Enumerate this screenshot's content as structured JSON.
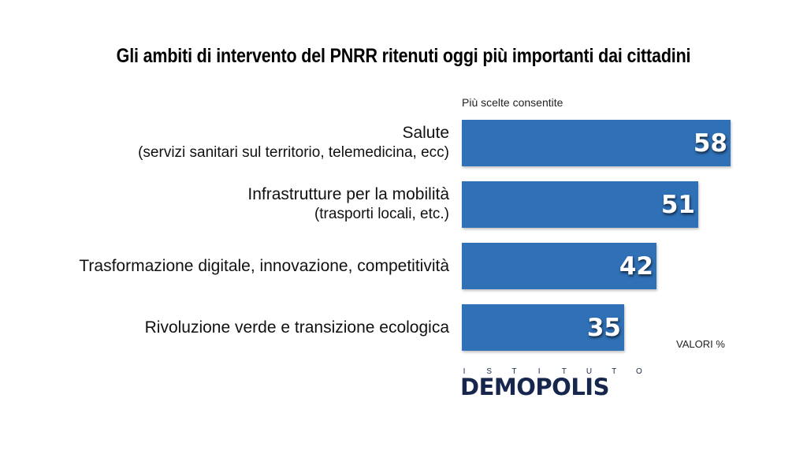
{
  "title": "Gli ambiti di intervento del PNRR ritenuti oggi più importanti dai cittadini",
  "subtitle": "Più scelte consentite",
  "unit_note": "VALORI %",
  "logo": {
    "top_text": "ISTITUTO",
    "main_before": "DEM",
    "main_o": "O",
    "main_after": "POLIS"
  },
  "colors": {
    "bar": "#2f70b6",
    "value_text": "#ffffff",
    "logo": "#16264d",
    "logo_accent": "#f5a028"
  },
  "chart_data": {
    "type": "bar",
    "orientation": "horizontal",
    "title": "Gli ambiti di intervento del PNRR ritenuti oggi più importanti dai cittadini",
    "categories": [
      {
        "label": "Salute",
        "sublabel": "(servizi sanitari sul territorio, telemedicina, ecc)"
      },
      {
        "label": "Infrastrutture per la mobilità",
        "sublabel": "(trasporti locali, etc.)"
      },
      {
        "label": "Trasformazione digitale, innovazione, competitività",
        "sublabel": ""
      },
      {
        "label": "Rivoluzione verde e transizione ecologica",
        "sublabel": ""
      }
    ],
    "values": [
      58,
      51,
      42,
      35
    ],
    "xlim": [
      0,
      100
    ],
    "grid": false,
    "legend": "none"
  }
}
